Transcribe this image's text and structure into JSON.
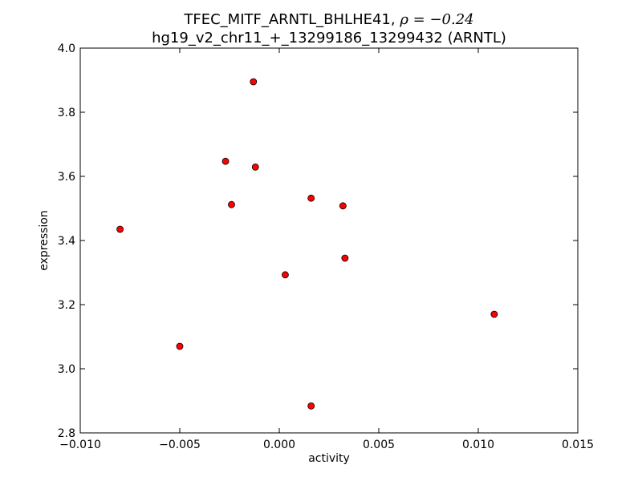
{
  "chart_data": {
    "type": "scatter",
    "title": "TFEC_MITF_ARNTL_BHLHE41, ρ = −0.24",
    "title_line1_text": "TFEC_MITF_ARNTL_BHLHE41, ",
    "title_line1_math": "ρ = −0.24",
    "subtitle": "hg19_v2_chr11_+_13299186_13299432 (ARNTL)",
    "xlabel": "activity",
    "ylabel": "expression",
    "xlim": [
      -0.01,
      0.015
    ],
    "ylim": [
      2.8,
      4.0
    ],
    "x_ticks": [
      -0.01,
      -0.005,
      0.0,
      0.005,
      0.01,
      0.015
    ],
    "x_tick_labels": [
      "−0.010",
      "−0.005",
      "0.000",
      "0.005",
      "0.010",
      "0.015"
    ],
    "y_ticks": [
      2.8,
      3.0,
      3.2,
      3.4,
      3.6,
      3.8,
      4.0
    ],
    "y_tick_labels": [
      "2.8",
      "3.0",
      "3.2",
      "3.4",
      "3.6",
      "3.8",
      "4.0"
    ],
    "grid": false,
    "marker_color": "#ff0000",
    "marker_edge_color": "#000000",
    "points": [
      {
        "x": -0.0013,
        "y": 3.895
      },
      {
        "x": -0.0027,
        "y": 3.647
      },
      {
        "x": -0.0012,
        "y": 3.629
      },
      {
        "x": -0.0024,
        "y": 3.512
      },
      {
        "x": 0.0016,
        "y": 3.532
      },
      {
        "x": 0.0032,
        "y": 3.508
      },
      {
        "x": -0.008,
        "y": 3.435
      },
      {
        "x": 0.0033,
        "y": 3.345
      },
      {
        "x": 0.0003,
        "y": 3.293
      },
      {
        "x": 0.0108,
        "y": 3.17
      },
      {
        "x": -0.005,
        "y": 3.07
      },
      {
        "x": 0.0016,
        "y": 2.884
      }
    ]
  }
}
